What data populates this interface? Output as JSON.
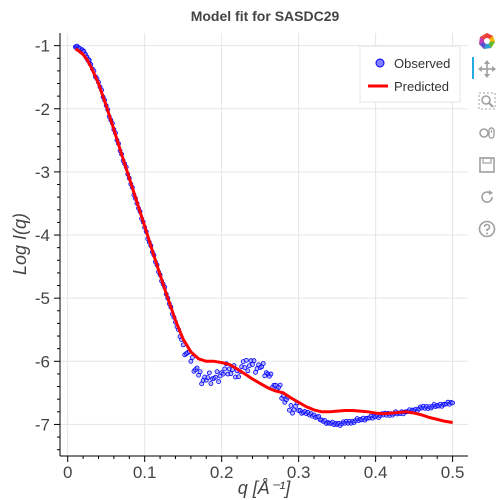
{
  "chart_data": {
    "type": "scatter",
    "title": "Model fit for SASDC29",
    "xlabel": "q [Å⁻¹]",
    "ylabel": "Log I(q)",
    "xlim": [
      -0.01,
      0.52
    ],
    "ylim": [
      -7.5,
      -0.8
    ],
    "x_ticks": [
      0,
      0.1,
      0.2,
      0.3,
      0.4,
      0.5
    ],
    "x_tick_labels": [
      "0",
      "0.1",
      "0.2",
      "0.3",
      "0.4",
      "0.5"
    ],
    "y_ticks": [
      -1,
      -2,
      -3,
      -4,
      -5,
      -6,
      -7
    ],
    "y_tick_labels": [
      "-1",
      "-2",
      "-3",
      "-4",
      "-5",
      "-6",
      "-7"
    ],
    "grid": true,
    "legend_position": "top-right",
    "series": [
      {
        "name": "Observed",
        "kind": "scatter",
        "color": "#0000ff",
        "fill": "#8080ff",
        "x": [
          0.01,
          0.015,
          0.02,
          0.025,
          0.03,
          0.04,
          0.05,
          0.06,
          0.07,
          0.08,
          0.09,
          0.1,
          0.11,
          0.12,
          0.13,
          0.14,
          0.15,
          0.16,
          0.17,
          0.18,
          0.19,
          0.2,
          0.21,
          0.22,
          0.23,
          0.24,
          0.25,
          0.26,
          0.27,
          0.28,
          0.29,
          0.3,
          0.31,
          0.32,
          0.33,
          0.34,
          0.35,
          0.36,
          0.37,
          0.38,
          0.39,
          0.4,
          0.41,
          0.42,
          0.43,
          0.44,
          0.45,
          0.46,
          0.47,
          0.48,
          0.49,
          0.5
        ],
        "y": [
          -1.02,
          -1.05,
          -1.1,
          -1.18,
          -1.3,
          -1.58,
          -1.95,
          -2.33,
          -2.72,
          -3.1,
          -3.5,
          -3.88,
          -4.27,
          -4.63,
          -5.0,
          -5.38,
          -5.74,
          -6.0,
          -6.22,
          -6.3,
          -6.27,
          -6.18,
          -6.12,
          -6.15,
          -6.1,
          -6.05,
          -6.1,
          -6.2,
          -6.38,
          -6.55,
          -6.7,
          -6.78,
          -6.83,
          -6.85,
          -6.93,
          -6.98,
          -7.0,
          -6.98,
          -6.95,
          -6.92,
          -6.9,
          -6.88,
          -6.85,
          -6.83,
          -6.82,
          -6.8,
          -6.78,
          -6.74,
          -6.72,
          -6.7,
          -6.68,
          -6.66
        ]
      },
      {
        "name": "Predicted",
        "kind": "line",
        "color": "#ff0000",
        "x": [
          0.01,
          0.015,
          0.02,
          0.025,
          0.03,
          0.04,
          0.05,
          0.06,
          0.07,
          0.08,
          0.09,
          0.1,
          0.11,
          0.12,
          0.13,
          0.14,
          0.15,
          0.16,
          0.17,
          0.18,
          0.19,
          0.2,
          0.21,
          0.22,
          0.23,
          0.24,
          0.25,
          0.26,
          0.27,
          0.28,
          0.29,
          0.3,
          0.31,
          0.32,
          0.33,
          0.34,
          0.35,
          0.36,
          0.37,
          0.38,
          0.39,
          0.4,
          0.41,
          0.42,
          0.43,
          0.44,
          0.45,
          0.46,
          0.47,
          0.48,
          0.49,
          0.5
        ],
        "y": [
          -1.05,
          -1.09,
          -1.14,
          -1.22,
          -1.33,
          -1.6,
          -1.95,
          -2.33,
          -2.72,
          -3.1,
          -3.48,
          -3.86,
          -4.25,
          -4.63,
          -5.0,
          -5.35,
          -5.65,
          -5.85,
          -5.96,
          -6.0,
          -6.0,
          -6.02,
          -6.05,
          -6.12,
          -6.2,
          -6.28,
          -6.35,
          -6.42,
          -6.47,
          -6.5,
          -6.58,
          -6.65,
          -6.72,
          -6.77,
          -6.8,
          -6.8,
          -6.79,
          -6.78,
          -6.78,
          -6.79,
          -6.8,
          -6.82,
          -6.83,
          -6.82,
          -6.81,
          -6.8,
          -6.82,
          -6.85,
          -6.89,
          -6.92,
          -6.95,
          -6.97
        ]
      }
    ]
  },
  "toolbar": {
    "items": [
      "bokeh-logo-icon",
      "pan-icon",
      "box-zoom-icon",
      "wheel-zoom-icon",
      "save-icon",
      "reset-icon",
      "help-icon"
    ]
  }
}
